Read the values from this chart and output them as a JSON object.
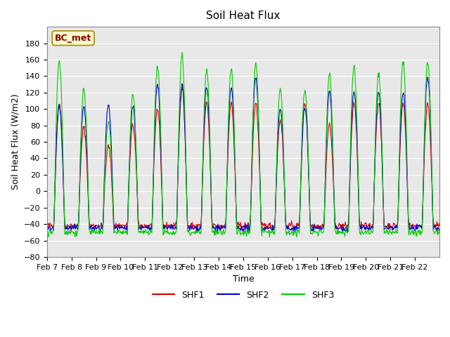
{
  "title": "Soil Heat Flux",
  "xlabel": "Time",
  "ylabel": "Soil Heat Flux (W/m2)",
  "ylim": [
    -80,
    200
  ],
  "yticks": [
    -80,
    -60,
    -40,
    -20,
    0,
    20,
    40,
    60,
    80,
    100,
    120,
    140,
    160,
    180
  ],
  "xtick_labels": [
    "Feb 7",
    "Feb 8",
    "Feb 9",
    "Feb 10",
    "Feb 11",
    "Feb 12",
    "Feb 13",
    "Feb 14",
    "Feb 15",
    "Feb 16",
    "Feb 17",
    "Feb 18",
    "Feb 19",
    "Feb 20",
    "Feb 21",
    "Feb 22"
  ],
  "colors": {
    "SHF1": "#dd0000",
    "SHF2": "#0000cc",
    "SHF3": "#00cc00"
  },
  "legend_label": "BC_met",
  "legend_text_color": "#8b0000",
  "legend_bg": "#ffffcc",
  "legend_border": "#aa8800",
  "background_color": "#e8e8e8",
  "grid_color": "#ffffff",
  "n_days": 16,
  "points_per_day": 48,
  "day_peaks_shf1": [
    107,
    77,
    55,
    80,
    100,
    128,
    107,
    107,
    107,
    87,
    107,
    81,
    107,
    107,
    107,
    107
  ],
  "day_peaks_shf2": [
    105,
    103,
    104,
    104,
    130,
    130,
    126,
    126,
    140,
    100,
    101,
    122,
    122,
    120,
    120,
    140
  ],
  "day_peaks_shf3": [
    159,
    124,
    84,
    117,
    153,
    165,
    147,
    148,
    155,
    123,
    124,
    143,
    152,
    143,
    158,
    158
  ],
  "night_base": -42
}
